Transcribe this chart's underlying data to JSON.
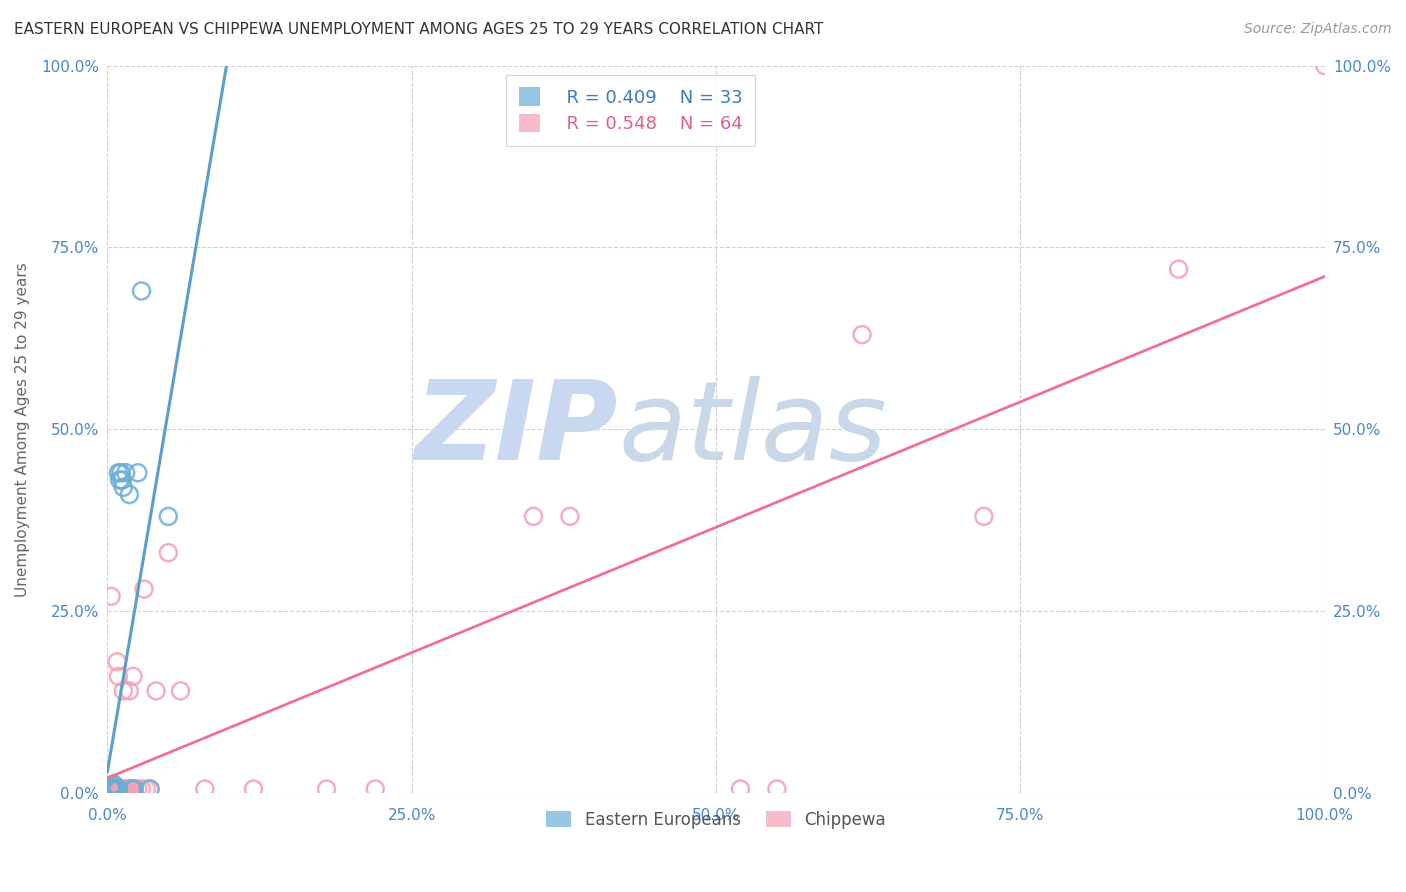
{
  "title": "EASTERN EUROPEAN VS CHIPPEWA UNEMPLOYMENT AMONG AGES 25 TO 29 YEARS CORRELATION CHART",
  "source": "Source: ZipAtlas.com",
  "ylabel": "Unemployment Among Ages 25 to 29 years",
  "xlim": [
    0,
    1.0
  ],
  "ylim": [
    0,
    1.0
  ],
  "xtick_labels": [
    "0.0%",
    "25.0%",
    "50.0%",
    "75.0%",
    "100.0%"
  ],
  "xtick_vals": [
    0,
    0.25,
    0.5,
    0.75,
    1.0
  ],
  "ytick_labels": [
    "0.0%",
    "25.0%",
    "50.0%",
    "75.0%",
    "100.0%"
  ],
  "ytick_vals": [
    0,
    0.25,
    0.5,
    0.75,
    1.0
  ],
  "eastern_european_color": "#6baed6",
  "chippewa_color": "#f4a0b5",
  "eastern_european_line_color": "#5b9ec9",
  "chippewa_line_color": "#f07090",
  "eastern_european_R": 0.409,
  "eastern_european_N": 33,
  "chippewa_R": 0.548,
  "chippewa_N": 64,
  "legend_text_blue": "#3a7abf",
  "legend_text_pink": "#e06080",
  "legend_N_color": "#2ca02c",
  "eastern_european_x": [
    0.003,
    0.003,
    0.003,
    0.004,
    0.004,
    0.004,
    0.004,
    0.005,
    0.005,
    0.005,
    0.005,
    0.005,
    0.005,
    0.006,
    0.006,
    0.006,
    0.007,
    0.007,
    0.008,
    0.009,
    0.009,
    0.01,
    0.011,
    0.012,
    0.013,
    0.015,
    0.018,
    0.02,
    0.022,
    0.025,
    0.028,
    0.035,
    0.05
  ],
  "eastern_european_y": [
    0.005,
    0.006,
    0.007,
    0.005,
    0.005,
    0.006,
    0.008,
    0.005,
    0.005,
    0.005,
    0.005,
    0.01,
    0.012,
    0.005,
    0.005,
    0.005,
    0.005,
    0.005,
    0.005,
    0.005,
    0.44,
    0.43,
    0.44,
    0.43,
    0.42,
    0.44,
    0.41,
    0.005,
    0.005,
    0.44,
    0.69,
    0.005,
    0.38
  ],
  "chippewa_x": [
    0.002,
    0.003,
    0.003,
    0.004,
    0.004,
    0.005,
    0.005,
    0.005,
    0.005,
    0.005,
    0.006,
    0.006,
    0.006,
    0.007,
    0.007,
    0.007,
    0.007,
    0.008,
    0.008,
    0.008,
    0.008,
    0.009,
    0.009,
    0.009,
    0.009,
    0.009,
    0.01,
    0.01,
    0.01,
    0.011,
    0.011,
    0.012,
    0.012,
    0.013,
    0.013,
    0.014,
    0.015,
    0.016,
    0.017,
    0.018,
    0.019,
    0.02,
    0.021,
    0.022,
    0.025,
    0.028,
    0.03,
    0.032,
    0.035,
    0.04,
    0.05,
    0.06,
    0.08,
    0.12,
    0.18,
    0.22,
    0.35,
    0.38,
    0.52,
    0.55,
    0.62,
    0.72,
    0.88,
    1.0
  ],
  "chippewa_y": [
    0.005,
    0.005,
    0.27,
    0.005,
    0.005,
    0.005,
    0.005,
    0.005,
    0.005,
    0.005,
    0.005,
    0.005,
    0.005,
    0.005,
    0.005,
    0.005,
    0.005,
    0.005,
    0.005,
    0.005,
    0.18,
    0.005,
    0.005,
    0.005,
    0.005,
    0.16,
    0.005,
    0.005,
    0.005,
    0.005,
    0.005,
    0.005,
    0.005,
    0.14,
    0.005,
    0.005,
    0.005,
    0.005,
    0.005,
    0.14,
    0.005,
    0.005,
    0.16,
    0.005,
    0.005,
    0.005,
    0.28,
    0.005,
    0.005,
    0.14,
    0.33,
    0.14,
    0.005,
    0.005,
    0.005,
    0.005,
    0.38,
    0.38,
    0.005,
    0.005,
    0.63,
    0.38,
    0.72,
    1.0
  ],
  "background_color": "#ffffff",
  "grid_color": "#cccccc",
  "axis_label_color": "#4a86c8",
  "title_color": "#333333",
  "watermark_zip_color": "#c8d8f0",
  "watermark_atlas_color": "#c8d8e8"
}
